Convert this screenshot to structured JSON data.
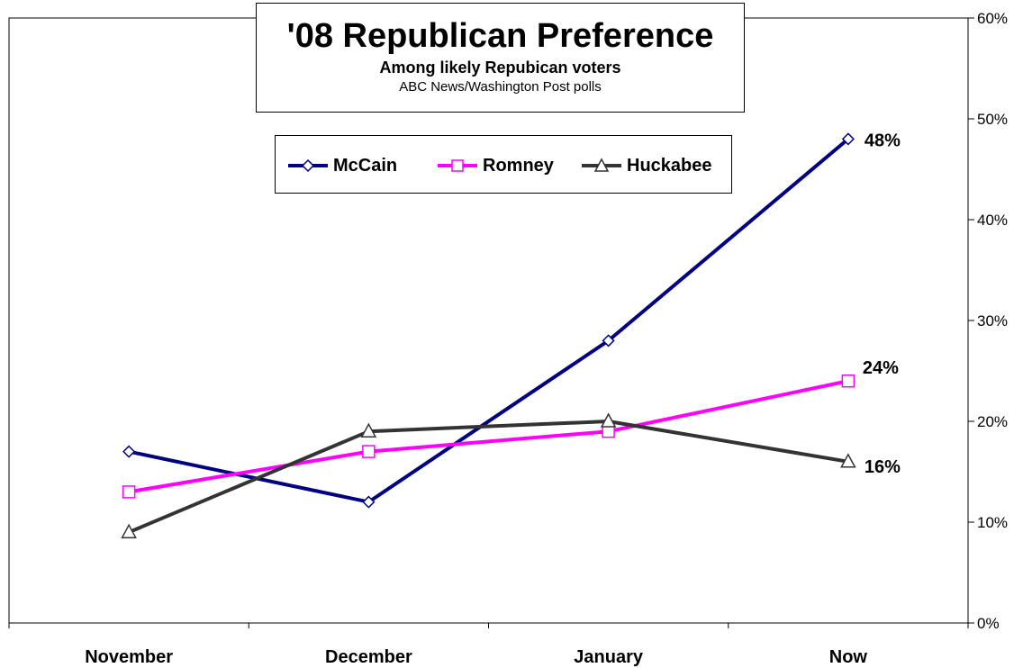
{
  "chart_data": {
    "type": "line",
    "title": "'08 Republican Preference",
    "subtitle": "Among likely Repubican voters",
    "source": "ABC News/Washington Post polls",
    "categories": [
      "November",
      "December",
      "January",
      "Now"
    ],
    "ylim": [
      0,
      60
    ],
    "yticks": [
      "0%",
      "10%",
      "20%",
      "30%",
      "40%",
      "50%",
      "60%"
    ],
    "y_axis_side": "right",
    "grid": false,
    "legend_position": "top-center",
    "series": [
      {
        "name": "McCain",
        "values": [
          17,
          12,
          28,
          48
        ],
        "color": "#000080",
        "marker": "diamond",
        "end_label": "48%"
      },
      {
        "name": "Romney",
        "values": [
          13,
          17,
          19,
          24
        ],
        "color": "#FF00FF",
        "marker": "square",
        "end_label": "24%"
      },
      {
        "name": "Huckabee",
        "values": [
          9,
          19,
          20,
          16
        ],
        "color": "#333333",
        "marker": "triangle",
        "end_label": "16%"
      }
    ]
  }
}
